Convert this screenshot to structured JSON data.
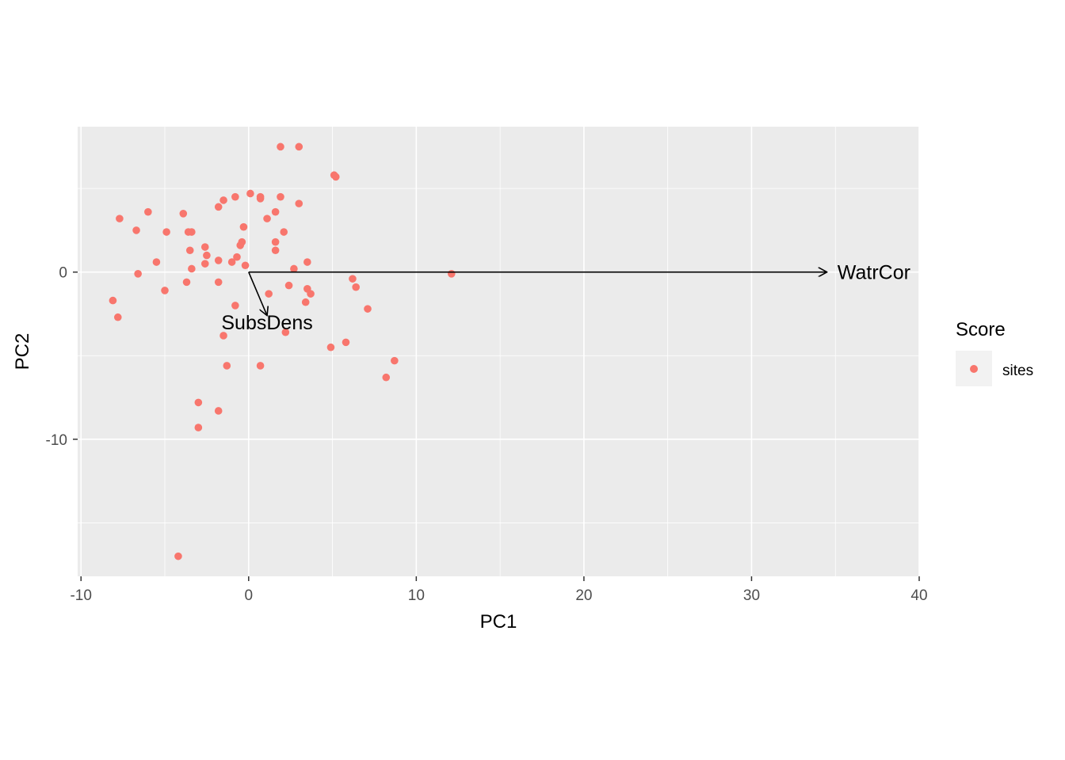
{
  "chart_data": {
    "type": "scatter",
    "title": "",
    "xlabel": "PC1",
    "ylabel": "PC2",
    "xlim": [
      -10.2,
      40
    ],
    "ylim": [
      -18.2,
      8.7
    ],
    "x_ticks": [
      -10,
      0,
      10,
      20,
      30,
      40
    ],
    "x_tick_labels": [
      "-10",
      "0",
      "10",
      "20",
      "30",
      "40"
    ],
    "y_ticks": [
      -10,
      0
    ],
    "y_tick_labels": [
      "-10",
      "0"
    ],
    "grid": true,
    "panel_background": "#ebebeb",
    "grid_color": "#ffffff",
    "legend": {
      "title": "Score",
      "position": "right",
      "entries": [
        {
          "label": "sites",
          "color": "#f8766d"
        }
      ]
    },
    "series": [
      {
        "name": "sites",
        "color": "#f8766d",
        "points": [
          [
            -8.1,
            -1.7
          ],
          [
            -7.8,
            -2.7
          ],
          [
            -7.7,
            3.2
          ],
          [
            -6.7,
            2.5
          ],
          [
            -6.6,
            -0.1
          ],
          [
            -6.0,
            3.6
          ],
          [
            -5.5,
            0.6
          ],
          [
            -5.0,
            -1.1
          ],
          [
            -4.9,
            2.4
          ],
          [
            -4.2,
            -17.0
          ],
          [
            -3.9,
            3.5
          ],
          [
            -3.7,
            -0.6
          ],
          [
            -3.6,
            2.4
          ],
          [
            -3.5,
            1.3
          ],
          [
            -3.4,
            2.4
          ],
          [
            -3.4,
            0.2
          ],
          [
            -3.0,
            -7.8
          ],
          [
            -3.0,
            -9.3
          ],
          [
            -2.6,
            0.5
          ],
          [
            -2.6,
            1.5
          ],
          [
            -2.5,
            1.0
          ],
          [
            -1.8,
            3.9
          ],
          [
            -1.8,
            0.7
          ],
          [
            -1.8,
            -0.6
          ],
          [
            -1.8,
            -8.3
          ],
          [
            -1.5,
            -3.8
          ],
          [
            -1.5,
            4.3
          ],
          [
            -1.3,
            -5.6
          ],
          [
            -1.0,
            0.6
          ],
          [
            -0.8,
            -2.0
          ],
          [
            -0.8,
            4.5
          ],
          [
            -0.7,
            0.9
          ],
          [
            -0.5,
            1.6
          ],
          [
            -0.4,
            1.8
          ],
          [
            -0.3,
            2.7
          ],
          [
            -0.2,
            0.4
          ],
          [
            0.1,
            4.7
          ],
          [
            0.7,
            4.4
          ],
          [
            0.7,
            -5.6
          ],
          [
            0.7,
            4.5
          ],
          [
            1.1,
            3.2
          ],
          [
            1.2,
            -1.3
          ],
          [
            1.6,
            1.3
          ],
          [
            1.6,
            1.8
          ],
          [
            1.6,
            3.6
          ],
          [
            1.9,
            7.5
          ],
          [
            1.9,
            4.5
          ],
          [
            2.1,
            2.4
          ],
          [
            2.2,
            -3.6
          ],
          [
            2.4,
            -0.8
          ],
          [
            2.7,
            0.2
          ],
          [
            3.0,
            4.1
          ],
          [
            3.0,
            7.5
          ],
          [
            3.4,
            -1.8
          ],
          [
            3.5,
            0.6
          ],
          [
            3.5,
            -1.0
          ],
          [
            3.7,
            -1.3
          ],
          [
            4.9,
            -4.5
          ],
          [
            5.1,
            5.8
          ],
          [
            5.2,
            5.7
          ],
          [
            5.8,
            -4.2
          ],
          [
            6.2,
            -0.4
          ],
          [
            6.4,
            -0.9
          ],
          [
            7.1,
            -2.2
          ],
          [
            8.2,
            -6.3
          ],
          [
            8.7,
            -5.3
          ],
          [
            12.1,
            -0.1
          ]
        ]
      }
    ],
    "vectors": [
      {
        "label": "WatrCor",
        "x": 34.5,
        "y": 0.0,
        "label_x": 37.3,
        "label_y": 0.0
      },
      {
        "label": "SubsDens",
        "x": 1.1,
        "y": -2.6,
        "label_x": 1.1,
        "label_y": -3.0
      }
    ]
  }
}
